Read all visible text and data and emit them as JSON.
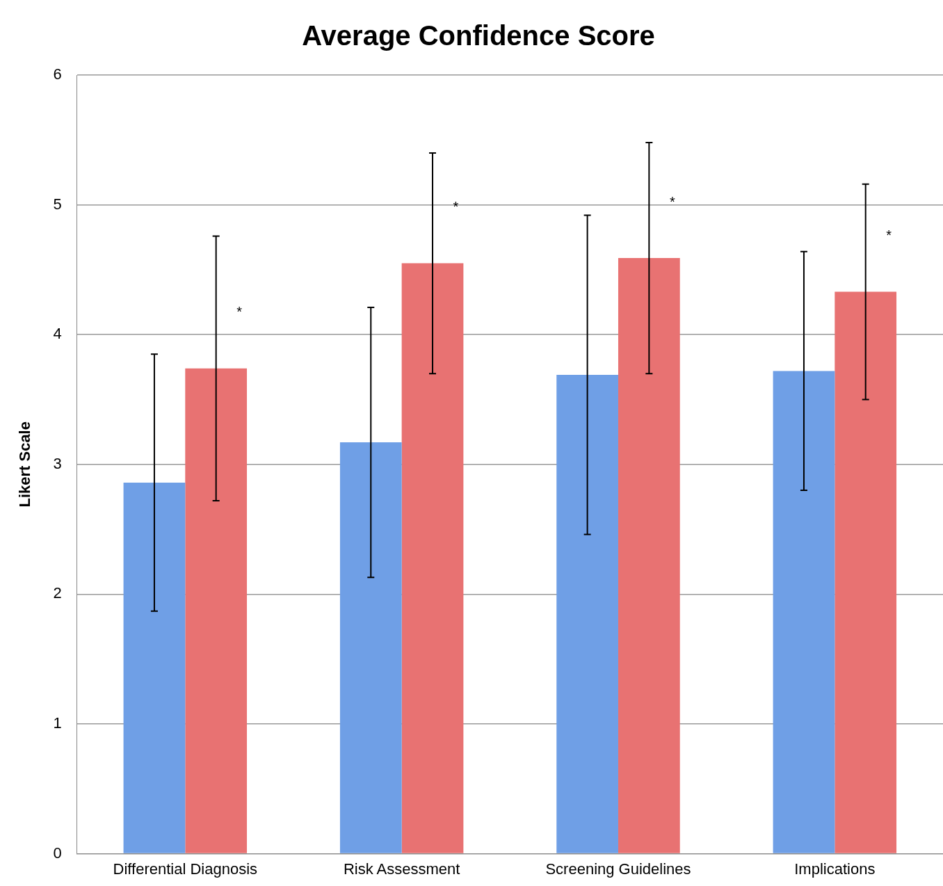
{
  "chart_data": {
    "type": "bar",
    "title": "Average Confidence Score",
    "ylabel": "Likert Scale",
    "categories": [
      "Differential Diagnosis",
      "Risk Assessment",
      "Screening Guidelines",
      "Implications"
    ],
    "series": [
      {
        "color": "#6f9fe6",
        "values": [
          2.86,
          3.17,
          3.69,
          3.72
        ],
        "errors": [
          0.99,
          1.04,
          1.23,
          0.92
        ]
      },
      {
        "color": "#e87272",
        "values": [
          3.74,
          4.55,
          4.59,
          4.33
        ],
        "errors": [
          1.02,
          0.85,
          0.89,
          0.83
        ]
      }
    ],
    "ylim": [
      0,
      6
    ],
    "yticks": [
      0,
      1,
      2,
      3,
      4,
      5,
      6
    ],
    "grid": "y",
    "legend": false,
    "annotations": [
      "*",
      "*",
      "*",
      "*"
    ]
  }
}
